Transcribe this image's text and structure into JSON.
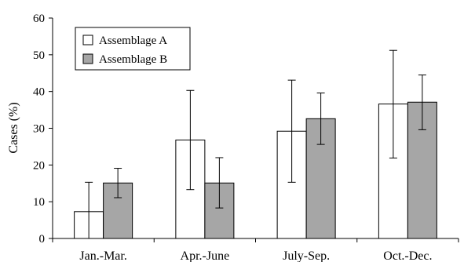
{
  "chart_data": {
    "type": "bar",
    "title": "",
    "xlabel": "",
    "ylabel": "Cases (%)",
    "ylim": [
      0,
      60
    ],
    "yticks": [
      "0",
      "10",
      "20",
      "30",
      "40",
      "50",
      "60"
    ],
    "grid": false,
    "legend_position": "top-left",
    "categories": [
      "Jan.-Mar.",
      "Apr.-June",
      "July-Sep.",
      "Oct.-Dec."
    ],
    "series": [
      {
        "name": "Assemblage A",
        "color": "#ffffff",
        "values": [
          7.3,
          26.8,
          29.2,
          36.6
        ],
        "error_low": [
          0,
          13.3,
          15.3,
          21.9
        ],
        "error_high": [
          15.3,
          40.3,
          43.1,
          51.2
        ]
      },
      {
        "name": "Assemblage B",
        "color": "#a6a6a6",
        "values": [
          15.1,
          15.1,
          32.6,
          37.1
        ],
        "error_low": [
          11.1,
          8.3,
          25.6,
          29.6
        ],
        "error_high": [
          19.1,
          22.0,
          39.6,
          44.5
        ]
      }
    ]
  }
}
